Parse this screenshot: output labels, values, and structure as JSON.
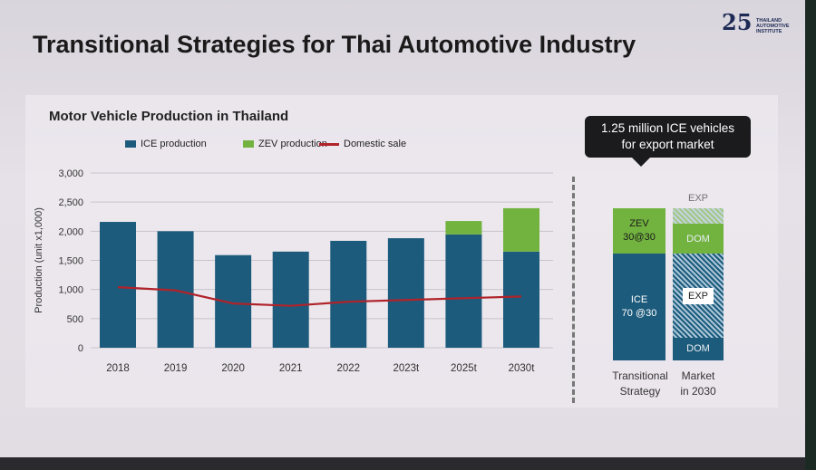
{
  "slide_title": "Transitional Strategies for Thai Automotive Industry",
  "logo": {
    "number": "25",
    "text": "THAILAND AUTOMOTIVE INSTITUTE สถาบันยานยนต์"
  },
  "colors": {
    "ice": "#1d5b7c",
    "zev": "#72b340",
    "domestic": "#b0232a"
  },
  "chart_data": [
    {
      "type": "bar",
      "title": "Motor Vehicle Production in Thailand",
      "ylabel": "Production (unit x1,000)",
      "xlabel": "",
      "ylim": [
        0,
        3000
      ],
      "yticks": [
        "0",
        "500",
        "1,000",
        "1,500",
        "2,000",
        "2,500",
        "3,000"
      ],
      "ytick_values": [
        0,
        500,
        1000,
        1500,
        2000,
        2500,
        3000
      ],
      "grid": true,
      "legend_position": "top",
      "categories": [
        "2018",
        "2019",
        "2020",
        "2021",
        "2022",
        "2023t",
        "2025t",
        "2030t"
      ],
      "series": [
        {
          "name": "ICE production",
          "kind": "bar",
          "values": [
            2160,
            2000,
            1590,
            1650,
            1835,
            1880,
            1945,
            1650
          ]
        },
        {
          "name": "ZEV production",
          "kind": "bar",
          "values": [
            0,
            0,
            0,
            0,
            0,
            0,
            230,
            745
          ]
        },
        {
          "name": "Domestic sale",
          "kind": "line",
          "values": [
            1040,
            985,
            760,
            720,
            790,
            820,
            850,
            880
          ]
        }
      ]
    },
    {
      "type": "bar",
      "title": "",
      "callout": [
        "1.25 million ICE vehicles",
        "for export market"
      ],
      "categories": [
        [
          "Transitional",
          "Strategy"
        ],
        [
          "Market",
          "in 2030"
        ]
      ],
      "transitional_strategy": [
        {
          "label": "ICE",
          "sublabel": "70 @30",
          "share": 70
        },
        {
          "label": "ZEV",
          "sublabel": "30@30",
          "share": 30
        }
      ],
      "market_2030": [
        {
          "label": "DOM",
          "group": "ICE",
          "share": 15
        },
        {
          "label": "EXP",
          "group": "ICE",
          "share": 55
        },
        {
          "label": "DOM",
          "group": "ZEV",
          "share": 20
        },
        {
          "label": "EXP",
          "group": "ZEV",
          "share": 10
        }
      ]
    }
  ]
}
